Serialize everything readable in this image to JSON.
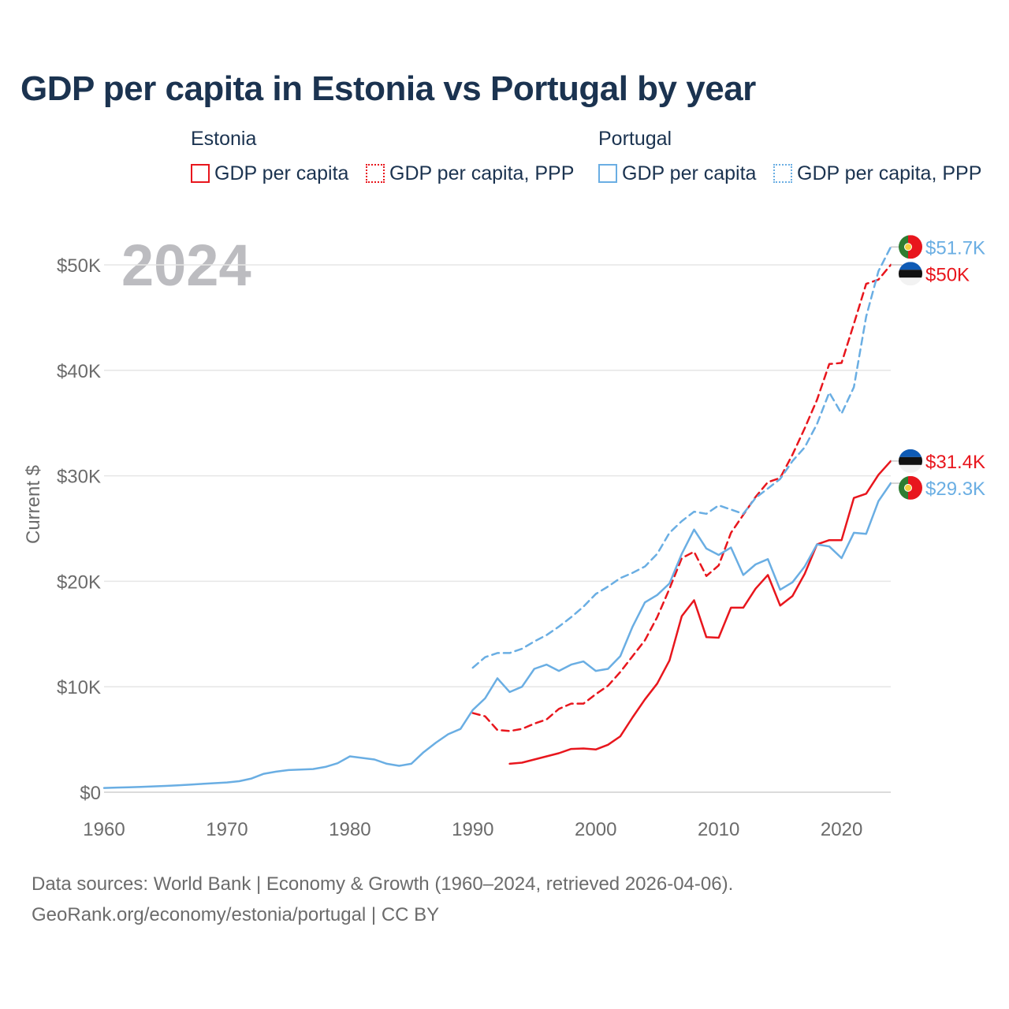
{
  "title": "GDP per capita in Estonia vs Portugal by year",
  "legend": {
    "estonia": {
      "label": "Estonia",
      "color": "#e8161d",
      "items": [
        {
          "label": "GDP per capita",
          "style": "solid"
        },
        {
          "label": "GDP per capita, PPP",
          "style": "dotted"
        }
      ]
    },
    "portugal": {
      "label": "Portugal",
      "color": "#6aaee3",
      "items": [
        {
          "label": "GDP per capita",
          "style": "solid"
        },
        {
          "label": "GDP per capita, PPP",
          "style": "dotted"
        }
      ]
    }
  },
  "year_label": "2024",
  "footer": {
    "line1": "Data sources: World Bank | Economy & Growth (1960–2024, retrieved 2026-04-06).",
    "line2": "GeoRank.org/economy/estonia/portugal | CC BY"
  },
  "chart_data": {
    "type": "line",
    "title": "GDP per capita in Estonia vs Portugal by year",
    "xlabel": "",
    "ylabel": "Current $",
    "xlim": [
      1960,
      2024
    ],
    "ylim": [
      0,
      50000
    ],
    "x_ticks": [
      1960,
      1970,
      1980,
      1990,
      2000,
      2010,
      2020
    ],
    "x_tick_labels": [
      "1960",
      "1970",
      "1980",
      "1990",
      "2000",
      "2010",
      "2020"
    ],
    "y_ticks": [
      0,
      10000,
      20000,
      30000,
      40000,
      50000
    ],
    "y_tick_labels": [
      "$0",
      "$10K",
      "$20K",
      "$30K",
      "$40K",
      "$50K"
    ],
    "grid": true,
    "series": [
      {
        "name": "Estonia GDP per capita",
        "country": "Estonia",
        "metric": "GDP per capita",
        "color": "#e8161d",
        "dash": "solid",
        "end_label": "$31.4K",
        "flag": "estonia",
        "points": [
          [
            1993,
            2700
          ],
          [
            1994,
            2800
          ],
          [
            1995,
            3100
          ],
          [
            1996,
            3400
          ],
          [
            1997,
            3700
          ],
          [
            1998,
            4100
          ],
          [
            1999,
            4150
          ],
          [
            2000,
            4050
          ],
          [
            2001,
            4500
          ],
          [
            2002,
            5300
          ],
          [
            2003,
            7100
          ],
          [
            2004,
            8800
          ],
          [
            2005,
            10300
          ],
          [
            2006,
            12500
          ],
          [
            2007,
            16700
          ],
          [
            2008,
            18200
          ],
          [
            2009,
            14700
          ],
          [
            2010,
            14650
          ],
          [
            2011,
            17500
          ],
          [
            2012,
            17500
          ],
          [
            2013,
            19300
          ],
          [
            2014,
            20600
          ],
          [
            2015,
            17700
          ],
          [
            2016,
            18600
          ],
          [
            2017,
            20700
          ],
          [
            2018,
            23500
          ],
          [
            2019,
            23900
          ],
          [
            2020,
            23900
          ],
          [
            2021,
            27900
          ],
          [
            2022,
            28300
          ],
          [
            2023,
            30100
          ],
          [
            2024,
            31400
          ]
        ]
      },
      {
        "name": "Estonia GDP per capita, PPP",
        "country": "Estonia",
        "metric": "GDP per capita, PPP",
        "color": "#e8161d",
        "dash": "dashed",
        "end_label": "$50K",
        "flag": "estonia",
        "points": [
          [
            1990,
            7500
          ],
          [
            1991,
            7200
          ],
          [
            1992,
            5900
          ],
          [
            1993,
            5800
          ],
          [
            1994,
            6000
          ],
          [
            1995,
            6500
          ],
          [
            1996,
            6900
          ],
          [
            1997,
            7900
          ],
          [
            1998,
            8400
          ],
          [
            1999,
            8400
          ],
          [
            2000,
            9300
          ],
          [
            2001,
            10100
          ],
          [
            2002,
            11400
          ],
          [
            2003,
            12900
          ],
          [
            2004,
            14400
          ],
          [
            2005,
            16600
          ],
          [
            2006,
            19300
          ],
          [
            2007,
            22200
          ],
          [
            2008,
            22800
          ],
          [
            2009,
            20500
          ],
          [
            2010,
            21500
          ],
          [
            2011,
            24600
          ],
          [
            2012,
            26300
          ],
          [
            2013,
            28000
          ],
          [
            2014,
            29400
          ],
          [
            2015,
            29800
          ],
          [
            2016,
            32000
          ],
          [
            2017,
            34500
          ],
          [
            2018,
            37200
          ],
          [
            2019,
            40600
          ],
          [
            2020,
            40700
          ],
          [
            2021,
            44400
          ],
          [
            2022,
            48200
          ],
          [
            2023,
            48600
          ],
          [
            2024,
            50000
          ]
        ]
      },
      {
        "name": "Portugal GDP per capita",
        "country": "Portugal",
        "metric": "GDP per capita",
        "color": "#6aaee3",
        "dash": "solid",
        "end_label": "$29.3K",
        "flag": "portugal",
        "points": [
          [
            1960,
            400
          ],
          [
            1961,
            440
          ],
          [
            1962,
            470
          ],
          [
            1963,
            510
          ],
          [
            1964,
            550
          ],
          [
            1965,
            600
          ],
          [
            1966,
            650
          ],
          [
            1967,
            720
          ],
          [
            1968,
            790
          ],
          [
            1969,
            860
          ],
          [
            1970,
            930
          ],
          [
            1971,
            1050
          ],
          [
            1972,
            1300
          ],
          [
            1973,
            1750
          ],
          [
            1974,
            1950
          ],
          [
            1975,
            2100
          ],
          [
            1976,
            2150
          ],
          [
            1977,
            2200
          ],
          [
            1978,
            2400
          ],
          [
            1979,
            2750
          ],
          [
            1980,
            3400
          ],
          [
            1981,
            3250
          ],
          [
            1982,
            3100
          ],
          [
            1983,
            2700
          ],
          [
            1984,
            2500
          ],
          [
            1985,
            2700
          ],
          [
            1986,
            3800
          ],
          [
            1987,
            4700
          ],
          [
            1988,
            5500
          ],
          [
            1989,
            6000
          ],
          [
            1990,
            7800
          ],
          [
            1991,
            8900
          ],
          [
            1992,
            10800
          ],
          [
            1993,
            9500
          ],
          [
            1994,
            10000
          ],
          [
            1995,
            11700
          ],
          [
            1996,
            12100
          ],
          [
            1997,
            11500
          ],
          [
            1998,
            12100
          ],
          [
            1999,
            12400
          ],
          [
            2000,
            11500
          ],
          [
            2001,
            11700
          ],
          [
            2002,
            12900
          ],
          [
            2003,
            15700
          ],
          [
            2004,
            18000
          ],
          [
            2005,
            18700
          ],
          [
            2006,
            19800
          ],
          [
            2007,
            22600
          ],
          [
            2008,
            24900
          ],
          [
            2009,
            23100
          ],
          [
            2010,
            22500
          ],
          [
            2011,
            23200
          ],
          [
            2012,
            20600
          ],
          [
            2013,
            21600
          ],
          [
            2014,
            22100
          ],
          [
            2015,
            19200
          ],
          [
            2016,
            19900
          ],
          [
            2017,
            21400
          ],
          [
            2018,
            23500
          ],
          [
            2019,
            23300
          ],
          [
            2020,
            22200
          ],
          [
            2021,
            24600
          ],
          [
            2022,
            24500
          ],
          [
            2023,
            27600
          ],
          [
            2024,
            29300
          ]
        ]
      },
      {
        "name": "Portugal GDP per capita, PPP",
        "country": "Portugal",
        "metric": "GDP per capita, PPP",
        "color": "#6aaee3",
        "dash": "dashed",
        "end_label": "$51.7K",
        "flag": "portugal",
        "points": [
          [
            1990,
            11800
          ],
          [
            1991,
            12800
          ],
          [
            1992,
            13200
          ],
          [
            1993,
            13200
          ],
          [
            1994,
            13600
          ],
          [
            1995,
            14300
          ],
          [
            1996,
            14900
          ],
          [
            1997,
            15700
          ],
          [
            1998,
            16600
          ],
          [
            1999,
            17600
          ],
          [
            2000,
            18800
          ],
          [
            2001,
            19500
          ],
          [
            2002,
            20300
          ],
          [
            2003,
            20800
          ],
          [
            2004,
            21400
          ],
          [
            2005,
            22600
          ],
          [
            2006,
            24600
          ],
          [
            2007,
            25700
          ],
          [
            2008,
            26600
          ],
          [
            2009,
            26400
          ],
          [
            2010,
            27200
          ],
          [
            2011,
            26800
          ],
          [
            2012,
            26400
          ],
          [
            2013,
            27900
          ],
          [
            2014,
            28800
          ],
          [
            2015,
            29700
          ],
          [
            2016,
            31400
          ],
          [
            2017,
            32700
          ],
          [
            2018,
            34900
          ],
          [
            2019,
            37900
          ],
          [
            2020,
            35900
          ],
          [
            2021,
            38400
          ],
          [
            2022,
            45100
          ],
          [
            2023,
            49400
          ],
          [
            2024,
            51700
          ]
        ]
      }
    ]
  }
}
